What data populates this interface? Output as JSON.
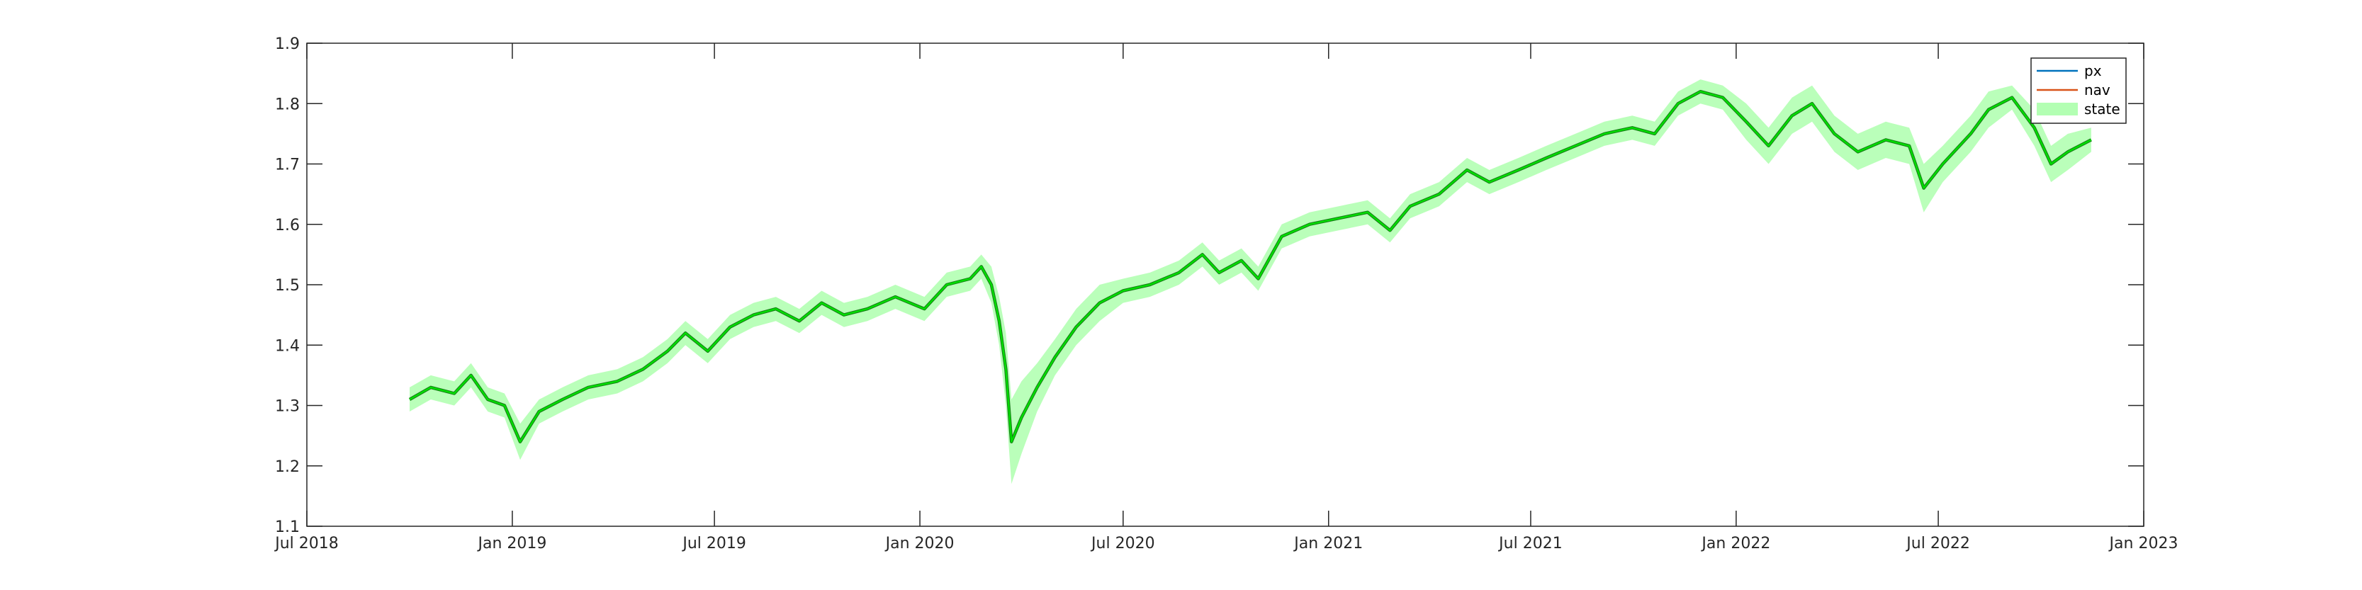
{
  "chart_data": {
    "type": "line",
    "title": "",
    "xlabel": "",
    "ylabel": "",
    "xlim": [
      "2018-07-01",
      "2023-01-01"
    ],
    "ylim": [
      1.1,
      1.9
    ],
    "x_ticks": [
      "2018-07-01",
      "2019-01-01",
      "2019-07-01",
      "2020-01-01",
      "2020-07-01",
      "2021-01-01",
      "2021-07-01",
      "2022-01-01",
      "2022-07-01",
      "2023-01-01"
    ],
    "x_tick_labels": [
      "Jul 2018",
      "Jan 2019",
      "Jul 2019",
      "Jan 2020",
      "Jul 2020",
      "Jan 2021",
      "Jul 2021",
      "Jan 2022",
      "Jul 2022",
      "Jan 2023"
    ],
    "y_ticks": [
      1.1,
      1.2,
      1.3,
      1.4,
      1.5,
      1.6,
      1.7,
      1.8,
      1.9
    ],
    "y_tick_labels": [
      "1.1",
      "1.2",
      "1.3",
      "1.4",
      "1.5",
      "1.6",
      "1.7",
      "1.8",
      "1.9"
    ],
    "grid": false,
    "legend_position": "top-right",
    "legend": [
      {
        "name": "px",
        "color": "#0072BD",
        "kind": "line"
      },
      {
        "name": "nav",
        "color": "#D95319",
        "kind": "line"
      },
      {
        "name": "state",
        "color": "#B3FFB3",
        "kind": "band"
      }
    ],
    "series": [
      {
        "name": "px",
        "color": "#1a7a1a",
        "x": [
          "2018-10-01",
          "2018-10-20",
          "2018-11-10",
          "2018-11-25",
          "2018-12-10",
          "2018-12-25",
          "2019-01-08",
          "2019-01-25",
          "2019-02-15",
          "2019-03-10",
          "2019-04-05",
          "2019-04-28",
          "2019-05-20",
          "2019-06-05",
          "2019-06-25",
          "2019-07-15",
          "2019-08-05",
          "2019-08-25",
          "2019-09-15",
          "2019-10-05",
          "2019-10-25",
          "2019-11-15",
          "2019-12-10",
          "2020-01-05",
          "2020-01-25",
          "2020-02-15",
          "2020-02-25",
          "2020-03-05",
          "2020-03-12",
          "2020-03-18",
          "2020-03-23",
          "2020-04-01",
          "2020-04-15",
          "2020-05-01",
          "2020-05-20",
          "2020-06-10",
          "2020-07-01",
          "2020-07-25",
          "2020-08-20",
          "2020-09-10",
          "2020-09-25",
          "2020-10-15",
          "2020-10-30",
          "2020-11-20",
          "2020-12-15",
          "2021-01-10",
          "2021-02-05",
          "2021-02-25",
          "2021-03-15",
          "2021-04-10",
          "2021-05-05",
          "2021-05-25",
          "2021-06-20",
          "2021-07-15",
          "2021-08-10",
          "2021-09-05",
          "2021-09-30",
          "2021-10-20",
          "2021-11-10",
          "2021-11-30",
          "2021-12-20",
          "2022-01-10",
          "2022-01-30",
          "2022-02-20",
          "2022-03-10",
          "2022-03-30",
          "2022-04-20",
          "2022-05-15",
          "2022-06-05",
          "2022-06-18",
          "2022-07-05",
          "2022-07-30",
          "2022-08-15",
          "2022-09-05",
          "2022-09-25",
          "2022-10-10",
          "2022-10-25",
          "2022-11-15"
        ],
        "values": [
          1.31,
          1.33,
          1.32,
          1.35,
          1.31,
          1.3,
          1.24,
          1.29,
          1.31,
          1.33,
          1.34,
          1.36,
          1.39,
          1.42,
          1.39,
          1.43,
          1.45,
          1.46,
          1.44,
          1.47,
          1.45,
          1.46,
          1.48,
          1.46,
          1.5,
          1.51,
          1.53,
          1.5,
          1.44,
          1.36,
          1.24,
          1.28,
          1.33,
          1.38,
          1.43,
          1.47,
          1.49,
          1.5,
          1.52,
          1.55,
          1.52,
          1.54,
          1.51,
          1.58,
          1.6,
          1.61,
          1.62,
          1.59,
          1.63,
          1.65,
          1.69,
          1.67,
          1.69,
          1.71,
          1.73,
          1.75,
          1.76,
          1.75,
          1.8,
          1.82,
          1.81,
          1.77,
          1.73,
          1.78,
          1.8,
          1.75,
          1.72,
          1.74,
          1.73,
          1.66,
          1.7,
          1.75,
          1.79,
          1.81,
          1.76,
          1.7,
          1.72,
          1.74
        ]
      },
      {
        "name": "nav",
        "color": "#00dd00",
        "x": [
          "2018-10-01",
          "2018-10-20",
          "2018-11-10",
          "2018-11-25",
          "2018-12-10",
          "2018-12-25",
          "2019-01-08",
          "2019-01-25",
          "2019-02-15",
          "2019-03-10",
          "2019-04-05",
          "2019-04-28",
          "2019-05-20",
          "2019-06-05",
          "2019-06-25",
          "2019-07-15",
          "2019-08-05",
          "2019-08-25",
          "2019-09-15",
          "2019-10-05",
          "2019-10-25",
          "2019-11-15",
          "2019-12-10",
          "2020-01-05",
          "2020-01-25",
          "2020-02-15",
          "2020-02-25",
          "2020-03-05",
          "2020-03-12",
          "2020-03-18",
          "2020-03-23",
          "2020-04-01",
          "2020-04-15",
          "2020-05-01",
          "2020-05-20",
          "2020-06-10",
          "2020-07-01",
          "2020-07-25",
          "2020-08-20",
          "2020-09-10",
          "2020-09-25",
          "2020-10-15",
          "2020-10-30",
          "2020-11-20",
          "2020-12-15",
          "2021-01-10",
          "2021-02-05",
          "2021-02-25",
          "2021-03-15",
          "2021-04-10",
          "2021-05-05",
          "2021-05-25",
          "2021-06-20",
          "2021-07-15",
          "2021-08-10",
          "2021-09-05",
          "2021-09-30",
          "2021-10-20",
          "2021-11-10",
          "2021-11-30",
          "2021-12-20",
          "2022-01-10",
          "2022-01-30",
          "2022-02-20",
          "2022-03-10",
          "2022-03-30",
          "2022-04-20",
          "2022-05-15",
          "2022-06-05",
          "2022-06-18",
          "2022-07-05",
          "2022-07-30",
          "2022-08-15",
          "2022-09-05",
          "2022-09-25",
          "2022-10-10",
          "2022-10-25",
          "2022-11-15"
        ],
        "values": [
          1.31,
          1.33,
          1.32,
          1.35,
          1.31,
          1.3,
          1.24,
          1.29,
          1.31,
          1.33,
          1.34,
          1.36,
          1.39,
          1.42,
          1.39,
          1.43,
          1.45,
          1.46,
          1.44,
          1.47,
          1.45,
          1.46,
          1.48,
          1.46,
          1.5,
          1.51,
          1.53,
          1.5,
          1.44,
          1.36,
          1.24,
          1.28,
          1.33,
          1.38,
          1.43,
          1.47,
          1.49,
          1.5,
          1.52,
          1.55,
          1.52,
          1.54,
          1.51,
          1.58,
          1.6,
          1.61,
          1.62,
          1.59,
          1.63,
          1.65,
          1.69,
          1.67,
          1.69,
          1.71,
          1.73,
          1.75,
          1.76,
          1.75,
          1.8,
          1.82,
          1.81,
          1.77,
          1.73,
          1.78,
          1.8,
          1.75,
          1.72,
          1.74,
          1.73,
          1.66,
          1.7,
          1.75,
          1.79,
          1.81,
          1.76,
          1.7,
          1.72,
          1.74
        ]
      },
      {
        "name": "state",
        "color": "#B3FFB3",
        "type": "band",
        "x": [
          "2018-10-01",
          "2018-10-20",
          "2018-11-10",
          "2018-11-25",
          "2018-12-10",
          "2018-12-25",
          "2019-01-08",
          "2019-01-25",
          "2019-02-15",
          "2019-03-10",
          "2019-04-05",
          "2019-04-28",
          "2019-05-20",
          "2019-06-05",
          "2019-06-25",
          "2019-07-15",
          "2019-08-05",
          "2019-08-25",
          "2019-09-15",
          "2019-10-05",
          "2019-10-25",
          "2019-11-15",
          "2019-12-10",
          "2020-01-05",
          "2020-01-25",
          "2020-02-15",
          "2020-02-25",
          "2020-03-05",
          "2020-03-12",
          "2020-03-18",
          "2020-03-23",
          "2020-04-01",
          "2020-04-15",
          "2020-05-01",
          "2020-05-20",
          "2020-06-10",
          "2020-07-01",
          "2020-07-25",
          "2020-08-20",
          "2020-09-10",
          "2020-09-25",
          "2020-10-15",
          "2020-10-30",
          "2020-11-20",
          "2020-12-15",
          "2021-01-10",
          "2021-02-05",
          "2021-02-25",
          "2021-03-15",
          "2021-04-10",
          "2021-05-05",
          "2021-05-25",
          "2021-06-20",
          "2021-07-15",
          "2021-08-10",
          "2021-09-05",
          "2021-09-30",
          "2021-10-20",
          "2021-11-10",
          "2021-11-30",
          "2021-12-20",
          "2022-01-10",
          "2022-01-30",
          "2022-02-20",
          "2022-03-10",
          "2022-03-30",
          "2022-04-20",
          "2022-05-15",
          "2022-06-05",
          "2022-06-18",
          "2022-07-05",
          "2022-07-30",
          "2022-08-15",
          "2022-09-05",
          "2022-09-25",
          "2022-10-10",
          "2022-10-25",
          "2022-11-15"
        ],
        "lower": [
          1.29,
          1.31,
          1.3,
          1.33,
          1.29,
          1.28,
          1.21,
          1.27,
          1.29,
          1.31,
          1.32,
          1.34,
          1.37,
          1.4,
          1.37,
          1.41,
          1.43,
          1.44,
          1.42,
          1.45,
          1.43,
          1.44,
          1.46,
          1.44,
          1.48,
          1.49,
          1.51,
          1.47,
          1.4,
          1.3,
          1.17,
          1.22,
          1.29,
          1.35,
          1.4,
          1.44,
          1.47,
          1.48,
          1.5,
          1.53,
          1.5,
          1.52,
          1.49,
          1.56,
          1.58,
          1.59,
          1.6,
          1.57,
          1.61,
          1.63,
          1.67,
          1.65,
          1.67,
          1.69,
          1.71,
          1.73,
          1.74,
          1.73,
          1.78,
          1.8,
          1.79,
          1.74,
          1.7,
          1.75,
          1.77,
          1.72,
          1.69,
          1.71,
          1.7,
          1.62,
          1.67,
          1.72,
          1.76,
          1.79,
          1.73,
          1.67,
          1.69,
          1.72
        ],
        "upper": [
          1.33,
          1.35,
          1.34,
          1.37,
          1.33,
          1.32,
          1.27,
          1.31,
          1.33,
          1.35,
          1.36,
          1.38,
          1.41,
          1.44,
          1.41,
          1.45,
          1.47,
          1.48,
          1.46,
          1.49,
          1.47,
          1.48,
          1.5,
          1.48,
          1.52,
          1.53,
          1.55,
          1.53,
          1.48,
          1.42,
          1.31,
          1.34,
          1.37,
          1.41,
          1.46,
          1.5,
          1.51,
          1.52,
          1.54,
          1.57,
          1.54,
          1.56,
          1.53,
          1.6,
          1.62,
          1.63,
          1.64,
          1.61,
          1.65,
          1.67,
          1.71,
          1.69,
          1.71,
          1.73,
          1.75,
          1.77,
          1.78,
          1.77,
          1.82,
          1.84,
          1.83,
          1.8,
          1.76,
          1.81,
          1.83,
          1.78,
          1.75,
          1.77,
          1.76,
          1.7,
          1.73,
          1.78,
          1.82,
          1.83,
          1.79,
          1.73,
          1.75,
          1.76
        ]
      }
    ]
  }
}
